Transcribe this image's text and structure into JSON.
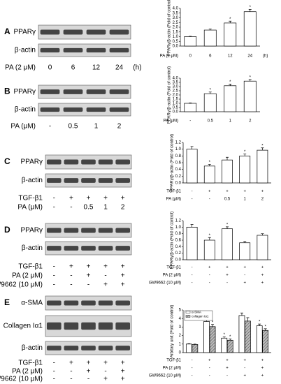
{
  "chart_data": [
    {
      "type": "bar",
      "panel_label": "A",
      "blot_labels": [
        "PPARγ",
        "β-actin"
      ],
      "y_label": "PPARγ/β-actin (Fold of control)",
      "conditions": [
        {
          "label": "PA (2 μM)",
          "values": [
            "0",
            "6",
            "12",
            "24"
          ]
        }
      ],
      "unit": "(h)",
      "series": [
        {
          "color": "#ffffff",
          "values": [
            1.0,
            1.7,
            2.45,
            3.65
          ],
          "errors": [
            0.04,
            0.12,
            0.2,
            0.25
          ],
          "significance": [
            null,
            null,
            "*",
            "*"
          ]
        }
      ],
      "ylim": [
        0,
        4
      ],
      "yticks": [
        {
          "value": 0,
          "label": "0.0"
        },
        0.5,
        {
          "value": 1,
          "label": "1.0"
        },
        1.5,
        {
          "value": 2,
          "label": "2.0"
        },
        2.5,
        {
          "value": 3,
          "label": "3.0"
        },
        3.5,
        {
          "value": 4,
          "label": "4.0"
        }
      ]
    },
    {
      "type": "bar",
      "panel_label": "B",
      "blot_labels": [
        "PPARγ",
        "β-actin"
      ],
      "y_label": "PPARγ/β-actin (Fold of control)",
      "conditions": [
        {
          "label": "PA (μM)",
          "values": [
            "-",
            "0.5",
            "1",
            "2"
          ]
        }
      ],
      "series": [
        {
          "color": "#ffffff",
          "values": [
            1.0,
            2.15,
            3.1,
            3.65
          ],
          "errors": [
            0.05,
            0.2,
            0.2,
            0.2
          ],
          "significance": [
            null,
            "*",
            "*",
            "*"
          ]
        }
      ],
      "ylim": [
        0,
        4
      ],
      "yticks": [
        {
          "value": 0,
          "label": "0.0"
        },
        0.5,
        {
          "value": 1,
          "label": "1.0"
        },
        1.5,
        {
          "value": 2,
          "label": "2.0"
        },
        2.5,
        {
          "value": 3,
          "label": "3.0"
        },
        3.5,
        {
          "value": 4,
          "label": "4.0"
        }
      ]
    },
    {
      "type": "bar",
      "panel_label": "C",
      "blot_labels": [
        "PPARγ",
        "β-actin"
      ],
      "y_label": "PPARγ/β-actin (Fold of control)",
      "conditions": [
        {
          "label": "TGF-β1",
          "values": [
            "-",
            "+",
            "+",
            "+",
            "+"
          ]
        },
        {
          "label": "PA (μM)",
          "values": [
            "-",
            "-",
            "0.5",
            "1",
            "2"
          ]
        }
      ],
      "series": [
        {
          "color": "#ffffff",
          "values": [
            1.0,
            0.5,
            0.68,
            0.8,
            0.97
          ],
          "errors": [
            0.08,
            0.05,
            0.08,
            0.06,
            0.07
          ],
          "significance": [
            null,
            "*",
            null,
            "*",
            "*"
          ]
        }
      ],
      "ylim": [
        0,
        1.2
      ],
      "yticks": [
        {
          "value": 0,
          "label": "0.0"
        },
        0.2,
        0.4,
        0.6,
        0.8,
        {
          "value": 1,
          "label": "1.0"
        },
        1.2
      ]
    },
    {
      "type": "bar",
      "panel_label": "D",
      "blot_labels": [
        "PPARγ",
        "β-actin"
      ],
      "y_label": "PPARγ/β-actin (Fold of control)",
      "conditions": [
        {
          "label": "TGF-β1",
          "values": [
            "-",
            "+",
            "+",
            "+",
            "+"
          ]
        },
        {
          "label": "PA (2 μM)",
          "values": [
            "-",
            "-",
            "+",
            "-",
            "+"
          ]
        },
        {
          "label": "GW9662 (10 μM)",
          "values": [
            "-",
            "-",
            "-",
            "+",
            "+"
          ]
        }
      ],
      "series": [
        {
          "color": "#ffffff",
          "values": [
            1.0,
            0.6,
            0.95,
            0.52,
            0.75
          ],
          "errors": [
            0.08,
            0.08,
            0.06,
            0.04,
            0.05
          ],
          "significance": [
            null,
            "*",
            "*",
            null,
            null
          ]
        }
      ],
      "ylim": [
        0,
        1.2
      ],
      "yticks": [
        {
          "value": 0,
          "label": "0.0"
        },
        0.2,
        0.4,
        0.6,
        0.8,
        {
          "value": 1,
          "label": "1.0"
        },
        1.2
      ]
    },
    {
      "type": "grouped_bar",
      "panel_label": "E",
      "blot_labels": [
        "α-SMA",
        "Collagen Iα1",
        "β-actin"
      ],
      "y_label": "Arbitary unit (Fold of control)",
      "conditions": [
        {
          "label": "TGF-β1",
          "values": [
            "-",
            "+",
            "+",
            "+",
            "+"
          ]
        },
        {
          "label": "PA (2 μM)",
          "values": [
            "-",
            "-",
            "+",
            "-",
            "+"
          ]
        },
        {
          "label": "GW9662 (10 μM)",
          "values": [
            "-",
            "-",
            "-",
            "+",
            "+"
          ]
        }
      ],
      "series": [
        {
          "name": "α-SMA",
          "color": "#ffffff",
          "values": [
            1.0,
            3.65,
            1.7,
            4.35,
            3.15
          ],
          "errors": [
            0.05,
            0.3,
            0.15,
            0.3,
            0.2
          ],
          "significance": [
            null,
            "*",
            "*",
            null,
            "*"
          ]
        },
        {
          "name": "collagen Iα1",
          "color": "#9a9a9a",
          "pattern": "hatch",
          "values": [
            0.95,
            3.05,
            1.45,
            3.7,
            2.6
          ],
          "errors": [
            0.05,
            0.25,
            0.15,
            0.4,
            0.2
          ],
          "significance": [
            null,
            "*",
            "*",
            null,
            "*"
          ]
        }
      ],
      "ylim": [
        0,
        5
      ],
      "yticks": [
        0,
        1,
        2,
        3,
        4,
        5
      ],
      "legend": "upper-left"
    }
  ]
}
